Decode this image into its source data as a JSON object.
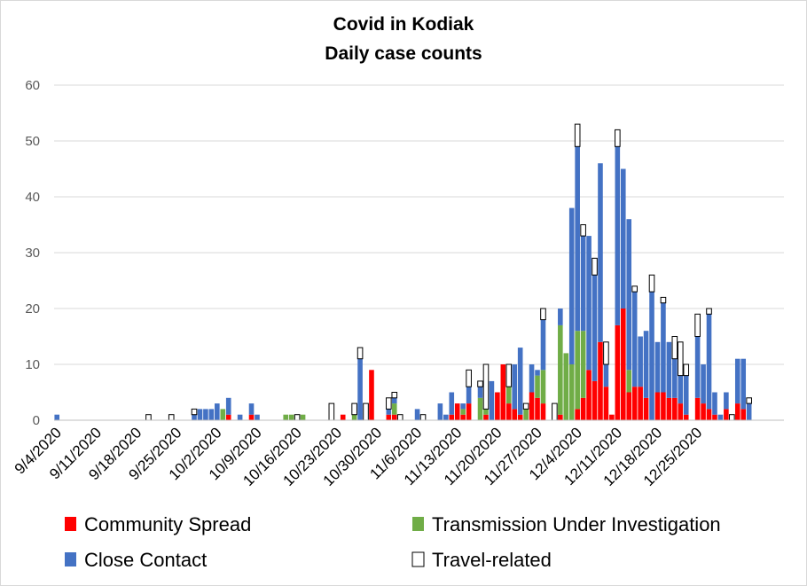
{
  "chart_data": {
    "type": "bar",
    "stacked": true,
    "title": "Covid in Kodiak",
    "subtitle": "Daily case counts",
    "xlabel": "",
    "ylabel": "",
    "ylim": [
      0,
      60
    ],
    "yticks": [
      0,
      10,
      20,
      30,
      40,
      50,
      60
    ],
    "grid": true,
    "legend_position": "bottom",
    "x_start": "9/4/2020",
    "x_end": "12/31/2020",
    "xtick_labels": [
      "9/4/2020",
      "9/11/2020",
      "9/18/2020",
      "9/25/2020",
      "10/2/2020",
      "10/9/2020",
      "10/16/2020",
      "10/23/2020",
      "10/30/2020",
      "11/6/2020",
      "11/13/2020",
      "11/20/2020",
      "11/27/2020",
      "12/4/2020",
      "12/11/2020",
      "12/18/2020",
      "12/25/2020"
    ],
    "series": [
      {
        "name": "Community Spread",
        "color": "#ff0000",
        "style": "solid",
        "data": [
          [
            "10/4/2020",
            1
          ],
          [
            "10/8/2020",
            1
          ],
          [
            "10/24/2020",
            1
          ],
          [
            "10/29/2020",
            9
          ],
          [
            "11/1/2020",
            1
          ],
          [
            "11/2/2020",
            1
          ],
          [
            "11/12/2020",
            1
          ],
          [
            "11/13/2020",
            3
          ],
          [
            "11/14/2020",
            1
          ],
          [
            "11/15/2020",
            3
          ],
          [
            "11/18/2020",
            1
          ],
          [
            "11/20/2020",
            5
          ],
          [
            "11/21/2020",
            10
          ],
          [
            "11/22/2020",
            3
          ],
          [
            "11/23/2020",
            2
          ],
          [
            "11/24/2020",
            1
          ],
          [
            "11/26/2020",
            5
          ],
          [
            "11/27/2020",
            4
          ],
          [
            "11/28/2020",
            3
          ],
          [
            "12/1/2020",
            1
          ],
          [
            "12/4/2020",
            2
          ],
          [
            "12/5/2020",
            4
          ],
          [
            "12/6/2020",
            9
          ],
          [
            "12/7/2020",
            7
          ],
          [
            "12/8/2020",
            14
          ],
          [
            "12/9/2020",
            6
          ],
          [
            "12/10/2020",
            1
          ],
          [
            "12/11/2020",
            17
          ],
          [
            "12/12/2020",
            20
          ],
          [
            "12/13/2020",
            5
          ],
          [
            "12/14/2020",
            6
          ],
          [
            "12/15/2020",
            6
          ],
          [
            "12/16/2020",
            4
          ],
          [
            "12/18/2020",
            5
          ],
          [
            "12/19/2020",
            5
          ],
          [
            "12/20/2020",
            4
          ],
          [
            "12/21/2020",
            4
          ],
          [
            "12/22/2020",
            3
          ],
          [
            "12/23/2020",
            1
          ],
          [
            "12/25/2020",
            4
          ],
          [
            "12/26/2020",
            3
          ],
          [
            "12/27/2020",
            2
          ],
          [
            "12/28/2020",
            1
          ],
          [
            "12/30/2020",
            2
          ],
          [
            "1/1/2021",
            3
          ],
          [
            "1/2/2021",
            2
          ]
        ]
      },
      {
        "name": "Transmission Under Investigation",
        "color": "#70ad47",
        "style": "solid",
        "data": [
          [
            "10/3/2020",
            2
          ],
          [
            "10/14/2020",
            1
          ],
          [
            "10/15/2020",
            1
          ],
          [
            "10/17/2020",
            1
          ],
          [
            "10/26/2020",
            1
          ],
          [
            "11/2/2020",
            2
          ],
          [
            "11/14/2020",
            1
          ],
          [
            "11/17/2020",
            4
          ],
          [
            "11/18/2020",
            1
          ],
          [
            "11/22/2020",
            3
          ],
          [
            "11/25/2020",
            2
          ],
          [
            "11/27/2020",
            4
          ],
          [
            "11/28/2020",
            6
          ],
          [
            "12/1/2020",
            16
          ],
          [
            "12/2/2020",
            12
          ],
          [
            "12/3/2020",
            10
          ],
          [
            "12/4/2020",
            14
          ],
          [
            "12/5/2020",
            12
          ],
          [
            "12/13/2020",
            4
          ]
        ]
      },
      {
        "name": "Close Contact",
        "color": "#4472c4",
        "style": "solid",
        "data": [
          [
            "9/4/2020",
            1
          ],
          [
            "9/28/2020",
            1
          ],
          [
            "9/29/2020",
            2
          ],
          [
            "9/30/2020",
            2
          ],
          [
            "10/1/2020",
            2
          ],
          [
            "10/2/2020",
            3
          ],
          [
            "10/4/2020",
            3
          ],
          [
            "10/6/2020",
            1
          ],
          [
            "10/8/2020",
            2
          ],
          [
            "10/9/2020",
            1
          ],
          [
            "10/27/2020",
            11
          ],
          [
            "11/1/2020",
            1
          ],
          [
            "11/2/2020",
            1
          ],
          [
            "11/6/2020",
            2
          ],
          [
            "11/10/2020",
            3
          ],
          [
            "11/11/2020",
            1
          ],
          [
            "11/12/2020",
            4
          ],
          [
            "11/14/2020",
            1
          ],
          [
            "11/15/2020",
            3
          ],
          [
            "11/17/2020",
            2
          ],
          [
            "11/19/2020",
            7
          ],
          [
            "11/23/2020",
            8
          ],
          [
            "11/24/2020",
            12
          ],
          [
            "11/26/2020",
            5
          ],
          [
            "11/27/2020",
            1
          ],
          [
            "11/28/2020",
            9
          ],
          [
            "12/1/2020",
            3
          ],
          [
            "12/3/2020",
            28
          ],
          [
            "12/4/2020",
            33
          ],
          [
            "12/5/2020",
            17
          ],
          [
            "12/6/2020",
            24
          ],
          [
            "12/7/2020",
            19
          ],
          [
            "12/8/2020",
            32
          ],
          [
            "12/9/2020",
            4
          ],
          [
            "12/11/2020",
            32
          ],
          [
            "12/12/2020",
            25
          ],
          [
            "12/13/2020",
            27
          ],
          [
            "12/14/2020",
            17
          ],
          [
            "12/15/2020",
            9
          ],
          [
            "12/16/2020",
            12
          ],
          [
            "12/17/2020",
            23
          ],
          [
            "12/18/2020",
            9
          ],
          [
            "12/19/2020",
            16
          ],
          [
            "12/20/2020",
            10
          ],
          [
            "12/21/2020",
            7
          ],
          [
            "12/22/2020",
            5
          ],
          [
            "12/23/2020",
            7
          ],
          [
            "12/25/2020",
            11
          ],
          [
            "12/26/2020",
            7
          ],
          [
            "12/27/2020",
            17
          ],
          [
            "12/28/2020",
            4
          ],
          [
            "12/29/2020",
            1
          ],
          [
            "12/30/2020",
            3
          ],
          [
            "1/1/2021",
            8
          ],
          [
            "1/2/2021",
            9
          ],
          [
            "1/3/2021",
            3
          ]
        ]
      },
      {
        "name": "Travel-related",
        "color": "#ffffff",
        "style": "outline",
        "data": [
          [
            "9/20/2020",
            1
          ],
          [
            "9/24/2020",
            1
          ],
          [
            "9/28/2020",
            1
          ],
          [
            "10/16/2020",
            1
          ],
          [
            "10/22/2020",
            3
          ],
          [
            "10/26/2020",
            2
          ],
          [
            "10/27/2020",
            2
          ],
          [
            "10/28/2020",
            3
          ],
          [
            "11/1/2020",
            2
          ],
          [
            "11/2/2020",
            1
          ],
          [
            "11/3/2020",
            1
          ],
          [
            "11/7/2020",
            1
          ],
          [
            "11/15/2020",
            3
          ],
          [
            "11/17/2020",
            1
          ],
          [
            "11/18/2020",
            8
          ],
          [
            "11/22/2020",
            4
          ],
          [
            "11/25/2020",
            1
          ],
          [
            "11/28/2020",
            2
          ],
          [
            "11/30/2020",
            3
          ],
          [
            "12/4/2020",
            4
          ],
          [
            "12/5/2020",
            2
          ],
          [
            "12/7/2020",
            3
          ],
          [
            "12/9/2020",
            4
          ],
          [
            "12/11/2020",
            3
          ],
          [
            "12/14/2020",
            1
          ],
          [
            "12/17/2020",
            3
          ],
          [
            "12/19/2020",
            1
          ],
          [
            "12/21/2020",
            4
          ],
          [
            "12/22/2020",
            6
          ],
          [
            "12/23/2020",
            2
          ],
          [
            "12/25/2020",
            4
          ],
          [
            "12/27/2020",
            1
          ],
          [
            "12/31/2020",
            1
          ],
          [
            "1/3/2021",
            1
          ]
        ]
      }
    ]
  }
}
